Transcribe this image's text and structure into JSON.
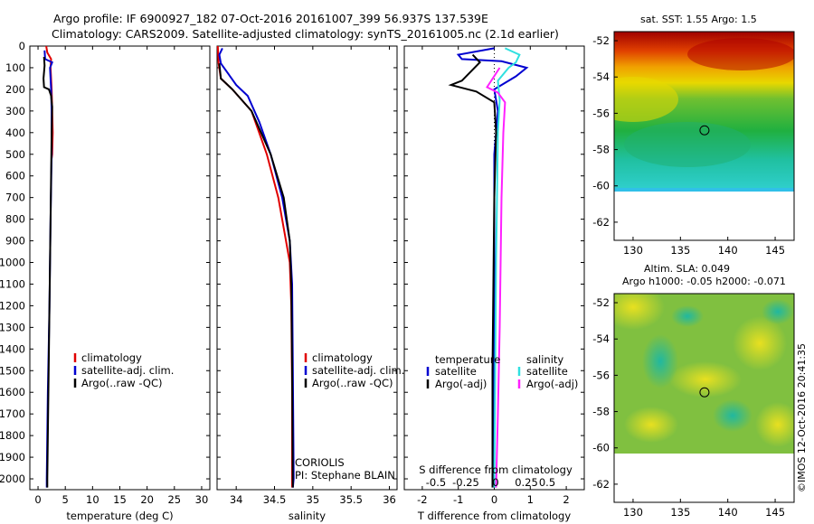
{
  "header": {
    "line1": "Argo profile: IF 6900927_182 07-Oct-2016 20161007_399 56.937S 137.539E",
    "line2": "Climatology: CARS2009. Satellite-adjusted climatology: synTS_20161005.nc (2.1d earlier)"
  },
  "colors": {
    "climatology": "#e00000",
    "satellite": "#0000d0",
    "argo": "#000000",
    "salinity_satellite": "#30e0e0",
    "salinity_argo": "#ff20ff"
  },
  "chart_data": [
    {
      "type": "line",
      "id": "temperature",
      "xlabel": "temperature (deg C)",
      "xlim": [
        -1.5,
        31.5
      ],
      "ylim": [
        0,
        2050
      ],
      "xticks": [
        0,
        5,
        10,
        15,
        20,
        25,
        30
      ],
      "yticks": [
        0,
        100,
        200,
        300,
        400,
        500,
        600,
        700,
        800,
        900,
        1000,
        1100,
        1200,
        1300,
        1400,
        1500,
        1600,
        1700,
        1800,
        1900,
        2000
      ],
      "legend": [
        "climatology",
        "satellite-adj. clim.",
        "Argo(..raw -QC)"
      ],
      "series": [
        {
          "name": "climatology",
          "color": "#e00000",
          "points": [
            [
              1.5,
              0
            ],
            [
              1.7,
              30
            ],
            [
              2.4,
              60
            ],
            [
              2.3,
              100
            ],
            [
              2.5,
              200
            ],
            [
              2.6,
              300
            ],
            [
              2.7,
              400
            ],
            [
              2.6,
              500
            ],
            [
              2.5,
              520
            ]
          ]
        },
        {
          "name": "satellite-adj. clim.",
          "color": "#0000d0",
          "points": [
            [
              1.2,
              20
            ],
            [
              1.3,
              60
            ],
            [
              2.6,
              75
            ],
            [
              2.2,
              100
            ],
            [
              2.4,
              200
            ],
            [
              2.5,
              300
            ],
            [
              2.5,
              500
            ],
            [
              2.3,
              800
            ],
            [
              2.1,
              1200
            ],
            [
              1.8,
              1600
            ],
            [
              1.6,
              2000
            ],
            [
              1.6,
              2040
            ]
          ]
        },
        {
          "name": "Argo(..raw -QC)",
          "color": "#000000",
          "points": [
            [
              1.1,
              50
            ],
            [
              1.2,
              90
            ],
            [
              1.0,
              150
            ],
            [
              1.1,
              190
            ],
            [
              2.0,
              200
            ],
            [
              2.4,
              230
            ],
            [
              2.6,
              280
            ],
            [
              2.5,
              400
            ],
            [
              2.3,
              800
            ],
            [
              2.1,
              1200
            ],
            [
              1.9,
              1600
            ],
            [
              1.7,
              2000
            ],
            [
              1.7,
              2040
            ]
          ]
        }
      ]
    },
    {
      "type": "line",
      "id": "salinity",
      "xlabel": "salinity",
      "xlim": [
        33.75,
        36.1
      ],
      "ylim": [
        0,
        2050
      ],
      "xticks": [
        34,
        34.5,
        35,
        35.5,
        36
      ],
      "legend": [
        "climatology",
        "satellite-adj. clim.",
        "Argo(..raw -QC)"
      ],
      "annotations": [
        "CORIOLIS",
        "PI: Stephane BLAIN"
      ],
      "series": [
        {
          "name": "climatology",
          "color": "#e00000",
          "points": [
            [
              33.76,
              0
            ],
            [
              33.77,
              80
            ],
            [
              33.8,
              150
            ],
            [
              33.95,
              200
            ],
            [
              34.2,
              300
            ],
            [
              34.4,
              500
            ],
            [
              34.55,
              700
            ],
            [
              34.65,
              900
            ],
            [
              34.7,
              1000
            ],
            [
              34.72,
              1200
            ],
            [
              34.73,
              1600
            ],
            [
              34.73,
              2040
            ]
          ]
        },
        {
          "name": "satellite-adj. clim.",
          "color": "#0000d0",
          "points": [
            [
              33.82,
              10
            ],
            [
              33.78,
              40
            ],
            [
              33.8,
              80
            ],
            [
              33.9,
              130
            ],
            [
              34.0,
              180
            ],
            [
              34.15,
              230
            ],
            [
              34.3,
              350
            ],
            [
              34.45,
              500
            ],
            [
              34.6,
              700
            ],
            [
              34.7,
              900
            ],
            [
              34.73,
              1100
            ],
            [
              34.74,
              1500
            ],
            [
              34.75,
              2000
            ],
            [
              34.74,
              2040
            ]
          ]
        },
        {
          "name": "Argo(..raw -QC)",
          "color": "#000000",
          "points": [
            [
              33.78,
              80
            ],
            [
              33.8,
              150
            ],
            [
              33.95,
              200
            ],
            [
              34.2,
              300
            ],
            [
              34.45,
              500
            ],
            [
              34.62,
              700
            ],
            [
              34.7,
              900
            ],
            [
              34.72,
              1100
            ],
            [
              34.73,
              1500
            ],
            [
              34.74,
              2040
            ]
          ]
        }
      ]
    },
    {
      "type": "line",
      "id": "difference",
      "xlabel": "T difference from climatology",
      "top_xlabel": "S difference from climatology",
      "xlim": [
        -2.5,
        2.5
      ],
      "ylim": [
        0,
        2050
      ],
      "xticks": [
        -2,
        -1,
        0,
        1,
        2
      ],
      "top_ticks": [
        "-0.5",
        "-0.25",
        "0",
        "0.25",
        "0.5"
      ],
      "legend_titles": [
        "temperature",
        "salinity"
      ],
      "legend": [
        "satellite",
        "Argo(-adj)",
        "satellite",
        "Argo(-adj)"
      ],
      "series": [
        {
          "name": "satellite",
          "group": "temperature",
          "color": "#0000d0",
          "points": [
            [
              0,
              10
            ],
            [
              -1.0,
              40
            ],
            [
              -0.9,
              60
            ],
            [
              0.2,
              70
            ],
            [
              0.9,
              100
            ],
            [
              0.6,
              140
            ],
            [
              0.0,
              200
            ],
            [
              0.1,
              300
            ],
            [
              0.0,
              500
            ],
            [
              0.0,
              2040
            ]
          ]
        },
        {
          "name": "Argo(-adj)",
          "group": "temperature",
          "color": "#000000",
          "points": [
            [
              -0.6,
              40
            ],
            [
              -0.4,
              75
            ],
            [
              -0.9,
              160
            ],
            [
              -1.2,
              180
            ],
            [
              -0.5,
              210
            ],
            [
              0.0,
              260
            ],
            [
              0.05,
              400
            ],
            [
              0.0,
              700
            ],
            [
              -0.05,
              1500
            ],
            [
              -0.05,
              2040
            ]
          ]
        },
        {
          "name": "satellite",
          "group": "salinity",
          "color": "#30e0e0",
          "points": [
            [
              0.3,
              10
            ],
            [
              0.7,
              40
            ],
            [
              0.6,
              75
            ],
            [
              0.4,
              100
            ],
            [
              0.1,
              160
            ],
            [
              0.15,
              250
            ],
            [
              0.1,
              400
            ],
            [
              0.05,
              1000
            ],
            [
              0.0,
              2040
            ]
          ]
        },
        {
          "name": "Argo(-adj)",
          "group": "salinity",
          "color": "#ff20ff",
          "points": [
            [
              0.15,
              100
            ],
            [
              -0.2,
              190
            ],
            [
              0.1,
              215
            ],
            [
              0.3,
              260
            ],
            [
              0.25,
              400
            ],
            [
              0.2,
              700
            ],
            [
              0.15,
              1300
            ],
            [
              0.1,
              1700
            ],
            [
              0.05,
              2040
            ]
          ]
        }
      ]
    },
    {
      "type": "heatmap",
      "id": "sst-map",
      "title": "sat. SST: 1.55 Argo: 1.5",
      "xlim": [
        128,
        147
      ],
      "ylim": [
        -63,
        -51.5
      ],
      "xticks": [
        130,
        135,
        140,
        145
      ],
      "yticks": [
        -52,
        -54,
        -56,
        -58,
        -60,
        -62
      ],
      "marker": [
        137.539,
        -56.937
      ],
      "data_extent_south": -60
    },
    {
      "type": "heatmap",
      "id": "sla-map",
      "title": "Altim. SLA: 0.049",
      "subtitle": "Argo h1000: -0.05 h2000: -0.071",
      "xlim": [
        128,
        147
      ],
      "ylim": [
        -63,
        -51.5
      ],
      "xticks": [
        130,
        135,
        140,
        145
      ],
      "yticks": [
        -52,
        -54,
        -56,
        -58,
        -60,
        -62
      ],
      "marker": [
        137.539,
        -56.937
      ],
      "data_extent_south": -60
    }
  ],
  "credit": "©IMOS 12-Oct-2016 20:41:35"
}
